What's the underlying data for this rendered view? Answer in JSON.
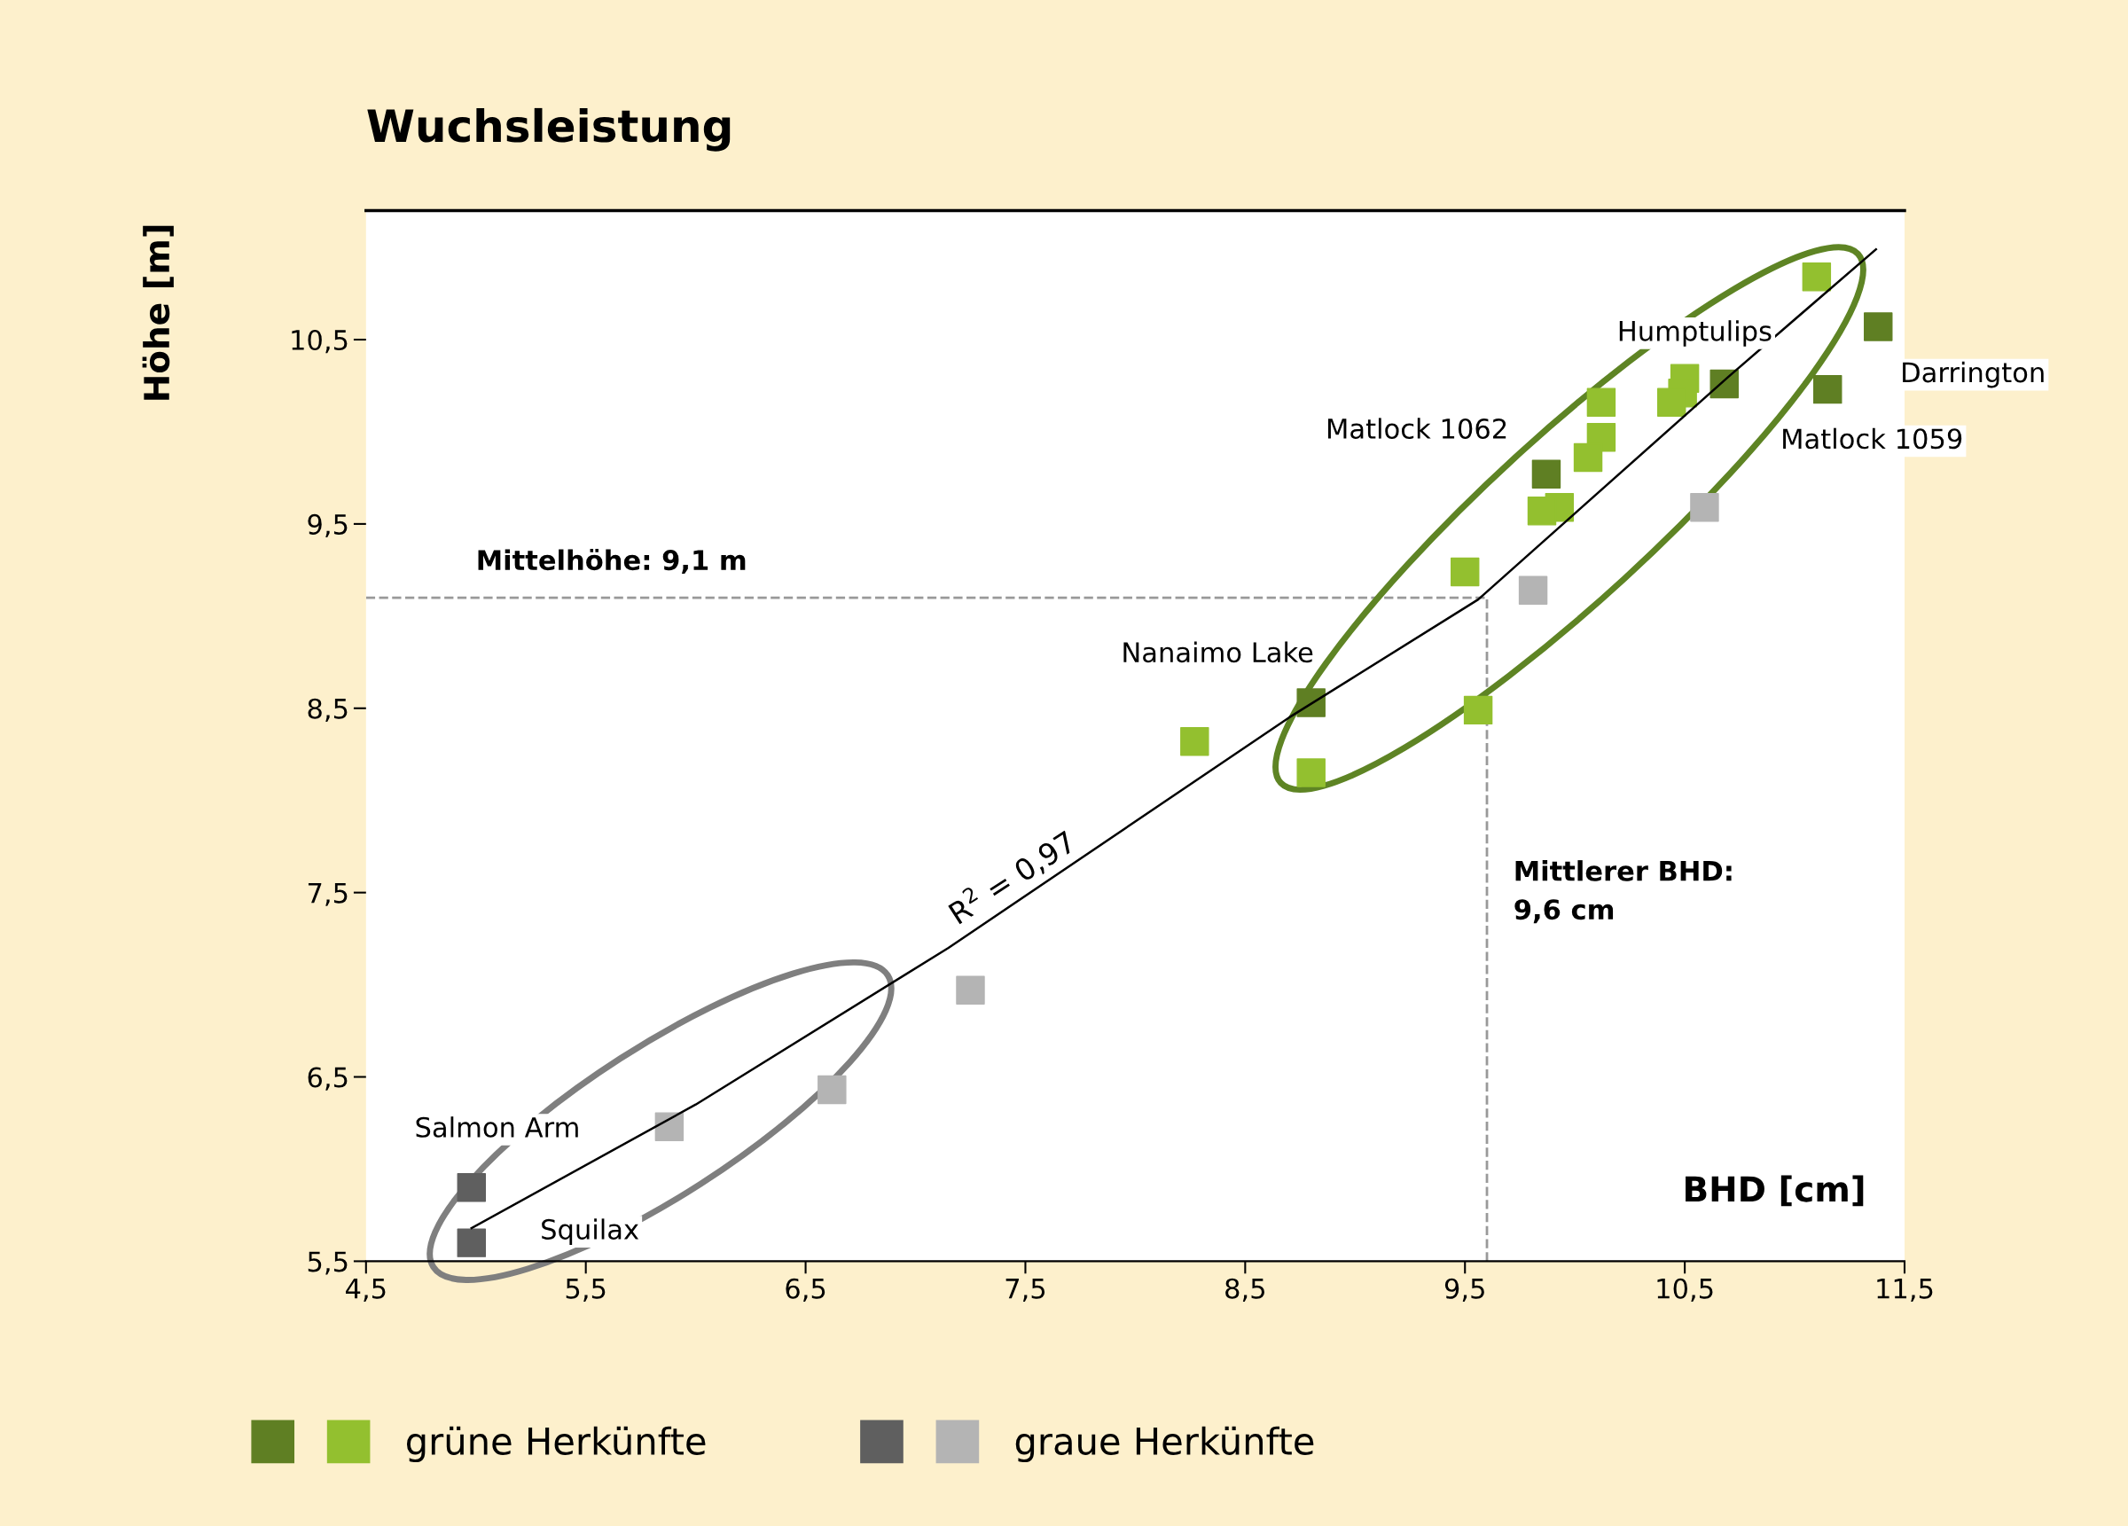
{
  "chart_data": {
    "type": "scatter",
    "title": "Wuchsleistung",
    "xlabel": "BHD [cm]",
    "ylabel": "Höhe [m]",
    "xlim": [
      4.5,
      11.5
    ],
    "ylim": [
      5.5,
      11.2
    ],
    "xticks": [
      {
        "value": 4.5,
        "label": "4,5"
      },
      {
        "value": 5.5,
        "label": "5,5"
      },
      {
        "value": 6.5,
        "label": "6,5"
      },
      {
        "value": 7.5,
        "label": "7,5"
      },
      {
        "value": 8.5,
        "label": "8,5"
      },
      {
        "value": 9.5,
        "label": "9,5"
      },
      {
        "value": 10.5,
        "label": "10,5"
      },
      {
        "value": 11.5,
        "label": "11,5"
      }
    ],
    "yticks": [
      {
        "value": 5.5,
        "label": "5,5"
      },
      {
        "value": 6.5,
        "label": "6,5"
      },
      {
        "value": 7.5,
        "label": "7,5"
      },
      {
        "value": 8.5,
        "label": "8,5"
      },
      {
        "value": 9.5,
        "label": "9,5"
      },
      {
        "value": 10.5,
        "label": "10,5"
      }
    ],
    "marker": "square",
    "grid": false,
    "legend": "bottom",
    "series": [
      {
        "name": "grüne Herkünfte",
        "colors": [
          "#5f7f23",
          "#5f7f23",
          "#5f7f23",
          "#5f7f23",
          "#5f7f23",
          "#93c02f",
          "#93c02f",
          "#93c02f",
          "#93c02f",
          "#93c02f",
          "#93c02f",
          "#93c02f",
          "#93c02f",
          "#93c02f",
          "#93c02f",
          "#93c02f",
          "#93c02f",
          "#93c02f"
        ],
        "x": [
          11.38,
          10.68,
          11.15,
          9.87,
          8.8,
          11.1,
          10.5,
          10.49,
          10.44,
          10.12,
          10.12,
          10.06,
          9.93,
          9.85,
          9.5,
          9.56,
          8.27,
          8.8
        ],
        "values": [
          10.57,
          10.26,
          10.23,
          9.77,
          8.53,
          10.84,
          10.29,
          10.21,
          10.16,
          10.16,
          9.97,
          9.86,
          9.59,
          9.57,
          9.24,
          8.49,
          8.32,
          8.15
        ]
      },
      {
        "name": "graue Herkünfte",
        "colors": [
          "#5f5f5f",
          "#5f5f5f",
          "#b4b4b4",
          "#b4b4b4",
          "#b4b4b4",
          "#b4b4b4",
          "#b4b4b4"
        ],
        "x": [
          4.98,
          4.98,
          10.59,
          9.81,
          7.25,
          6.62,
          5.88
        ],
        "values": [
          5.9,
          5.6,
          9.59,
          9.14,
          6.97,
          6.43,
          6.23
        ]
      },
      {
        "type": "line",
        "color": "#000000",
        "marker": "none",
        "x": [
          4.98,
          6.0,
          7.15,
          8.7,
          9.56,
          10.7,
          11.37
        ],
        "values": [
          5.68,
          6.35,
          7.2,
          8.45,
          9.09,
          10.3,
          10.99
        ]
      }
    ],
    "ref_lines": [
      {
        "axis": "y",
        "value": 9.1,
        "label": "Mittelhöhe: 9,1 m",
        "color": "#999999",
        "line_style": "dashed"
      },
      {
        "axis": "x",
        "value": 9.6,
        "label": "Mittlerer BHD:\n9,6 cm",
        "color": "#999999",
        "line_style": "dashed"
      }
    ],
    "annotations": [
      {
        "text": "Humptulips",
        "x": 10.68,
        "y": 10.26
      },
      {
        "text": "Darrington",
        "x": 11.38,
        "y": 10.57
      },
      {
        "text": "Matlock 1062",
        "x": 9.87,
        "y": 9.77
      },
      {
        "text": "Matlock 1059",
        "x": 11.15,
        "y": 10.23
      },
      {
        "text": "Nanaimo Lake",
        "x": 8.8,
        "y": 8.53
      },
      {
        "text": "Salmon Arm",
        "x": 4.98,
        "y": 5.9
      },
      {
        "text": "Squilax",
        "x": 4.98,
        "y": 5.6
      },
      {
        "text": "R$^{2}$ = 0,97",
        "x": 7.5,
        "y": 7.48
      }
    ]
  }
}
